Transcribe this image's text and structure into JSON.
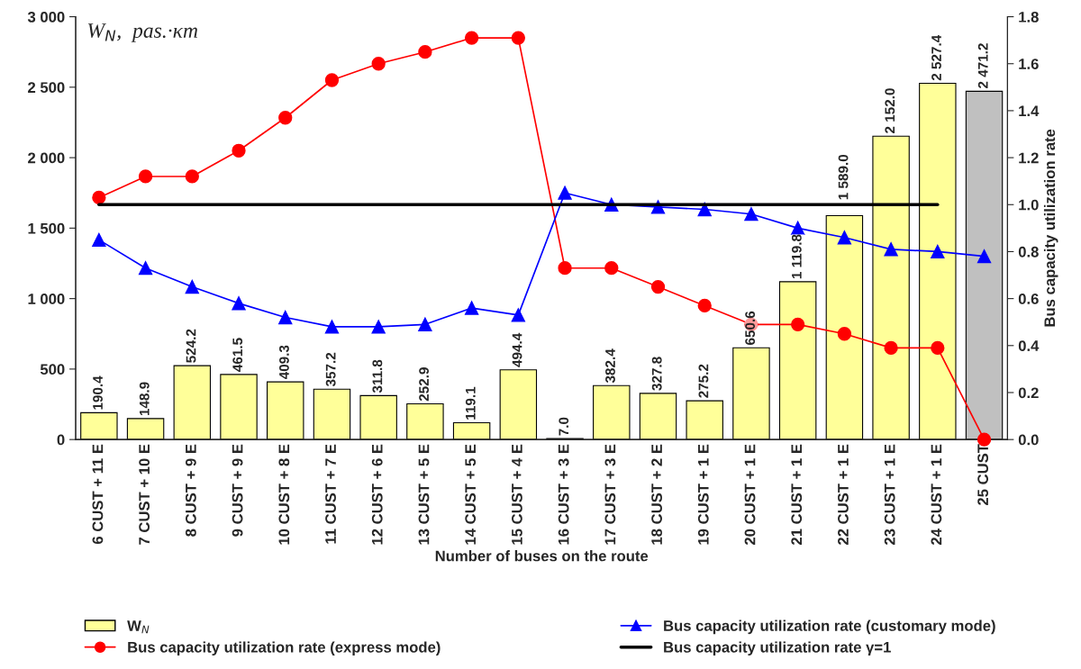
{
  "chart_data": {
    "type": "bar",
    "ylabel": "W$_{N}$,  pas.·κm",
    "xlabel": "Number of buses on the route",
    "y2label": "Bus capacity utilization rate",
    "categories": [
      "6 CUST + 11 E",
      "7 CUST + 10 E",
      "8 CUST + 9 E",
      "9 CUST + 9 E",
      "10 CUST + 8 E",
      "11 CUST + 7 E",
      "12 CUST + 6 E",
      "13 CUST + 5 E",
      "14 CUST + 5 E",
      "15 CUST + 4 E",
      "16 CUST + 3 E",
      "17 CUST + 3 E",
      "18 CUST + 2 E",
      "19 CUST + 1 E",
      "20 CUST + 1 E",
      "21 CUST + 1 E",
      "22 CUST + 1 E",
      "23 CUST + 1 E",
      "24 CUST + 1 E",
      "25 CUST"
    ],
    "series": [
      {
        "name": "W$_{N}$",
        "values": [
          190.4,
          148.9,
          524.2,
          461.5,
          409.3,
          357.2,
          311.8,
          252.9,
          119.1,
          494.4,
          7.0,
          382.4,
          327.8,
          275.2,
          650.6,
          1119.8,
          1589.0,
          2152.0,
          2527.4,
          2471.2
        ],
        "colors": [
          "#ffff99",
          "#ffff99",
          "#ffff99",
          "#ffff99",
          "#ffff99",
          "#ffff99",
          "#ffff99",
          "#ffff99",
          "#ffff99",
          "#ffff99",
          "#ffff99",
          "#ffff99",
          "#ffff99",
          "#ffff99",
          "#ffff99",
          "#ffff99",
          "#ffff99",
          "#ffff99",
          "#ffff99",
          "#c0c0c0"
        ],
        "color": "#ffff99",
        "value_labels": [
          "190.4",
          "148.9",
          "524.2",
          "461.5",
          "409.3",
          "357.2",
          "311.8",
          "252.9",
          "119.1",
          "494.4",
          "7.0",
          "382.4",
          "327.8",
          "275.2",
          "650.6",
          "1 119.8",
          "1 589.0",
          "2 152.0",
          "2 527.4",
          "2 471.2"
        ]
      },
      {
        "type": "line",
        "axis": "y2",
        "name": "Bus capacity utilization rate (express mode)",
        "color": "#ff0000",
        "marker": "circle",
        "values": [
          1.03,
          1.12,
          1.12,
          1.23,
          1.37,
          1.53,
          1.6,
          1.65,
          1.71,
          1.71,
          0.73,
          0.73,
          0.65,
          0.57,
          0.49,
          0.49,
          0.45,
          0.39,
          0.39,
          0.0
        ]
      },
      {
        "type": "line",
        "axis": "y2",
        "name": "Bus capacity utilization rate (customary mode)",
        "color": "#0000ff",
        "marker": "triangle",
        "values": [
          0.85,
          0.73,
          0.65,
          0.58,
          0.52,
          0.48,
          0.48,
          0.49,
          0.56,
          0.53,
          1.05,
          1.0,
          0.99,
          0.98,
          0.96,
          0.9,
          0.86,
          0.81,
          0.8,
          0.78
        ]
      },
      {
        "type": "line",
        "axis": "y2",
        "name": "Bus capacity utilization rate γ=1",
        "color": "#000000",
        "marker": "none",
        "values": [
          1,
          1,
          1,
          1,
          1,
          1,
          1,
          1,
          1,
          1,
          1,
          1,
          1,
          1,
          1,
          1,
          1,
          1,
          1,
          null
        ]
      }
    ],
    "ylim": [
      0,
      3000
    ],
    "yticks": [
      0,
      500,
      {
        "value": 1000,
        "label": "1 000"
      },
      {
        "value": 1500,
        "label": "1 500"
      },
      {
        "value": 2000,
        "label": "2 000"
      },
      {
        "value": 2500,
        "label": "2 500"
      },
      {
        "value": 3000,
        "label": "3 000"
      }
    ],
    "y2lim": [
      0,
      1.8
    ],
    "y2ticks": [
      {
        "value": 0,
        "label": "0.0"
      },
      0.2,
      0.4,
      0.6,
      0.8,
      {
        "value": 1,
        "label": "1.0"
      },
      1.2,
      1.4,
      1.6,
      1.8
    ],
    "grid": false,
    "legend": "bottom"
  }
}
